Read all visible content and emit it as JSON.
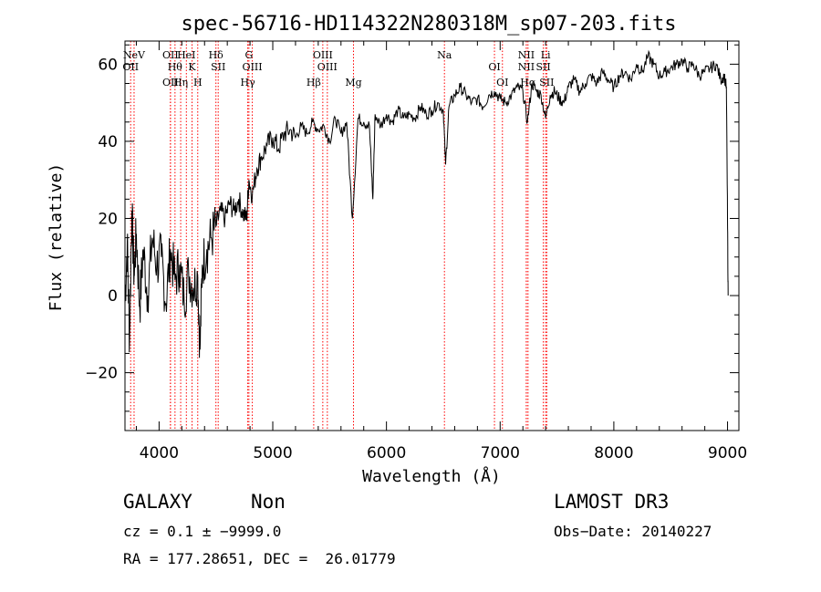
{
  "chart_data": {
    "type": "line",
    "title": "spec-56716-HD114322N280318M_sp07-203.fits",
    "xlabel": "Wavelength (Å)",
    "ylabel": "Flux (relative)",
    "xlim": [
      3700,
      9100
    ],
    "ylim": [
      -35,
      66
    ],
    "xticks": [
      4000,
      5000,
      6000,
      7000,
      8000,
      9000
    ],
    "yticks": [
      -20,
      0,
      20,
      40,
      60
    ],
    "grid": false,
    "series": [
      {
        "name": "flux",
        "x": [
          3700,
          3720,
          3740,
          3760,
          3780,
          3800,
          3830,
          3860,
          3900,
          3940,
          3980,
          4020,
          4060,
          4100,
          4140,
          4180,
          4220,
          4260,
          4300,
          4340,
          4360,
          4380,
          4420,
          4460,
          4500,
          4540,
          4580,
          4620,
          4660,
          4700,
          4740,
          4770,
          4790,
          4820,
          4860,
          4900,
          4950,
          5000,
          5050,
          5100,
          5150,
          5200,
          5250,
          5300,
          5350,
          5400,
          5450,
          5500,
          5550,
          5600,
          5650,
          5700,
          5750,
          5800,
          5850,
          5880,
          5900,
          5950,
          6000,
          6050,
          6100,
          6150,
          6200,
          6250,
          6300,
          6350,
          6400,
          6450,
          6500,
          6520,
          6550,
          6600,
          6650,
          6700,
          6750,
          6800,
          6850,
          6900,
          6950,
          7000,
          7050,
          7100,
          7150,
          7200,
          7240,
          7280,
          7320,
          7360,
          7400,
          7440,
          7480,
          7520,
          7560,
          7600,
          7650,
          7700,
          7750,
          7800,
          7850,
          7900,
          7950,
          8000,
          8050,
          8100,
          8150,
          8200,
          8250,
          8300,
          8350,
          8400,
          8450,
          8500,
          8550,
          8600,
          8650,
          8700,
          8750,
          8800,
          8850,
          8900,
          8940,
          8970,
          8990,
          9000,
          9005
        ],
        "values": [
          -2,
          14,
          -12,
          22,
          5,
          16,
          -3,
          12,
          0,
          15,
          8,
          10,
          -2,
          12,
          4,
          8,
          -1,
          6,
          2,
          5,
          -14,
          8,
          12,
          15,
          18,
          22,
          20,
          24,
          22,
          25,
          21,
          20,
          30,
          26,
          33,
          36,
          39,
          41,
          38,
          42,
          43,
          41,
          44,
          42,
          45,
          43,
          44,
          40,
          46,
          42,
          45,
          20,
          46,
          45,
          44,
          25,
          47,
          44,
          47,
          45,
          48,
          46,
          47,
          46,
          49,
          47,
          48,
          50,
          48,
          34,
          49,
          52,
          54,
          52,
          50,
          51,
          49,
          52,
          53,
          51,
          50,
          52,
          54,
          53,
          45,
          55,
          53,
          52,
          46,
          52,
          53,
          51,
          50,
          54,
          56,
          53,
          55,
          57,
          55,
          58,
          56,
          54,
          57,
          58,
          56,
          60,
          58,
          62,
          60,
          57,
          58,
          59,
          60,
          61,
          59,
          60,
          57,
          58,
          59,
          60,
          56,
          57,
          54,
          20,
          0
        ]
      }
    ],
    "spectral_lines": [
      {
        "label": "NeV",
        "wavelength": 3780
      },
      {
        "label": "OII",
        "wavelength": 3750
      },
      {
        "label": "OII",
        "wavelength": 4100
      },
      {
        "label": "OII",
        "wavelength": 4100
      },
      {
        "label": "Hθ",
        "wavelength": 4140
      },
      {
        "label": "Hη",
        "wavelength": 4190
      },
      {
        "label": "HeI",
        "wavelength": 4240
      },
      {
        "label": "K",
        "wavelength": 4290
      },
      {
        "label": "H",
        "wavelength": 4340
      },
      {
        "label": "Hδ",
        "wavelength": 4500
      },
      {
        "label": "SII",
        "wavelength": 4520
      },
      {
        "label": "Hγ",
        "wavelength": 4780
      },
      {
        "label": "G",
        "wavelength": 4790
      },
      {
        "label": "OIII",
        "wavelength": 4820
      },
      {
        "label": "Hβ",
        "wavelength": 5360
      },
      {
        "label": "OIII",
        "wavelength": 5440
      },
      {
        "label": "OIII",
        "wavelength": 5480
      },
      {
        "label": "Mg",
        "wavelength": 5710
      },
      {
        "label": "Na",
        "wavelength": 6510
      },
      {
        "label": "OI",
        "wavelength": 6950
      },
      {
        "label": "OI",
        "wavelength": 7020
      },
      {
        "label": "NII",
        "wavelength": 7230
      },
      {
        "label": "NII",
        "wavelength": 7230
      },
      {
        "label": "Hα",
        "wavelength": 7245
      },
      {
        "label": "Li",
        "wavelength": 7400
      },
      {
        "label": "SII",
        "wavelength": 7380
      },
      {
        "label": "SII",
        "wavelength": 7410
      }
    ]
  },
  "info": {
    "class": "GALAXY",
    "subclass": "Non",
    "survey": "LAMOST DR3",
    "cz": "cz = 0.1 ± −9999.0",
    "obs_date": "Obs−Date: 20140227",
    "coords": "RA = 177.28651, DEC =  26.01779"
  },
  "colors": {
    "line": "#ff0000",
    "axis": "#000000",
    "spectrum": "#000000"
  }
}
